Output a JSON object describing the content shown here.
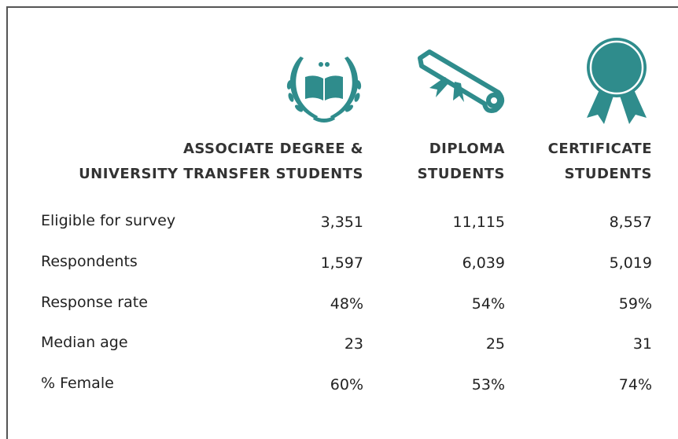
{
  "table": {
    "columns": [
      {
        "lines": [
          "ASSOCIATE DEGREE &",
          "UNIVERSITY TRANSFER STUDENTS"
        ]
      },
      {
        "lines": [
          "DIPLOMA",
          "STUDENTS"
        ]
      },
      {
        "lines": [
          "CERTIFICATE",
          "STUDENTS"
        ]
      }
    ],
    "rows": [
      [
        "Eligible for survey",
        "3,351",
        "11,115",
        "8,557"
      ],
      [
        "Respondents",
        "1,597",
        "6,039",
        "5,019"
      ],
      [
        "Response rate",
        "48%",
        "54%",
        "59%"
      ],
      [
        "Median age",
        "23",
        "25",
        "31"
      ],
      [
        "% Female",
        "60%",
        "53%",
        "74%"
      ]
    ]
  }
}
